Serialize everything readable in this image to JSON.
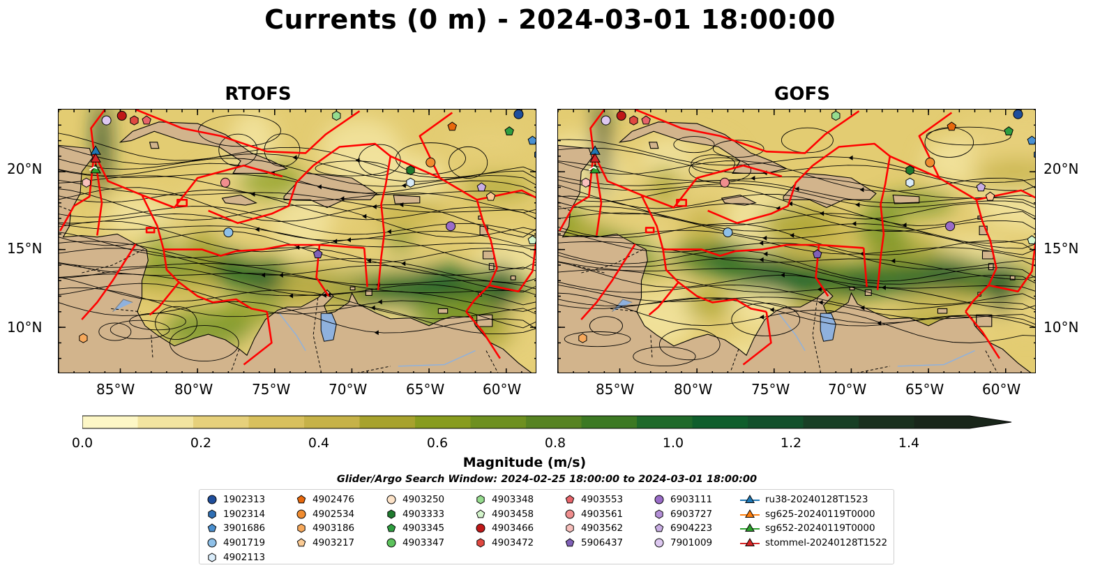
{
  "title": "Currents (0 m) - 2024-03-01 18:00:00",
  "panels": [
    {
      "id": "rtofs",
      "title": "RTOFS"
    },
    {
      "id": "gofs",
      "title": "GOFS"
    }
  ],
  "axes": {
    "x_ticks": [
      "85°W",
      "80°W",
      "75°W",
      "70°W",
      "65°W",
      "60°W"
    ],
    "y_ticks": [
      "20°N",
      "15°N",
      "10°N"
    ],
    "lon_range": [
      -89,
      -58
    ],
    "lat_range": [
      7,
      24
    ]
  },
  "colorbar": {
    "label": "Magnitude (m/s)",
    "ticks": [
      "0.0",
      "0.2",
      "0.4",
      "0.6",
      "0.8",
      "1.0",
      "1.2",
      "1.4"
    ],
    "min": 0.0,
    "max": 1.5,
    "extend": "max",
    "colors": [
      "#fdf7c6",
      "#f2e4a0",
      "#e6d07b",
      "#d8c05d",
      "#c6b248",
      "#a7a22d",
      "#889c1e",
      "#6e9020",
      "#578322",
      "#3c7923",
      "#1f6a2a",
      "#0f5e2c",
      "#12502b",
      "#183f25",
      "#1a301e",
      "#19261a"
    ]
  },
  "search_window": "Glider/Argo Search Window: 2024-02-25 18:00:00 to 2024-03-01 18:00:00",
  "legend": {
    "columns": [
      [
        {
          "label": "1902313",
          "marker": "circle",
          "color": "#1f4e9c"
        },
        {
          "label": "1902314",
          "marker": "hexagon",
          "color": "#2f6fb4"
        },
        {
          "label": "3901686",
          "marker": "pentagon",
          "color": "#4a90d0"
        },
        {
          "label": "4901719",
          "marker": "circle",
          "color": "#8ec0e8"
        },
        {
          "label": "4902113",
          "marker": "hexagon",
          "color": "#d9ecfa"
        }
      ],
      [
        {
          "label": "4902476",
          "marker": "pentagon",
          "color": "#e8680c"
        },
        {
          "label": "4902534",
          "marker": "circle",
          "color": "#f08c30"
        },
        {
          "label": "4903186",
          "marker": "hexagon",
          "color": "#f7a95c"
        },
        {
          "label": "4903217",
          "marker": "pentagon",
          "color": "#fbcb94"
        }
      ],
      [
        {
          "label": "4903250",
          "marker": "circle",
          "color": "#fde3c8"
        },
        {
          "label": "4903333",
          "marker": "hexagon",
          "color": "#1f7a2e"
        },
        {
          "label": "4903345",
          "marker": "pentagon",
          "color": "#2e9e40"
        },
        {
          "label": "4903347",
          "marker": "circle",
          "color": "#5cc25c"
        }
      ],
      [
        {
          "label": "4903348",
          "marker": "hexagon",
          "color": "#96dc8e"
        },
        {
          "label": "4903458",
          "marker": "pentagon",
          "color": "#d4f5cc"
        },
        {
          "label": "4903466",
          "marker": "circle",
          "color": "#c01818"
        },
        {
          "label": "4903472",
          "marker": "hexagon",
          "color": "#e04840"
        }
      ],
      [
        {
          "label": "4903553",
          "marker": "pentagon",
          "color": "#e8646a"
        },
        {
          "label": "4903561",
          "marker": "circle",
          "color": "#f08e8e"
        },
        {
          "label": "4903562",
          "marker": "hexagon",
          "color": "#f8c0bc"
        },
        {
          "label": "5906437",
          "marker": "pentagon",
          "color": "#8060b8"
        }
      ],
      [
        {
          "label": "6903111",
          "marker": "circle",
          "color": "#9a6cc8"
        },
        {
          "label": "6903727",
          "marker": "hexagon",
          "color": "#b48fd8"
        },
        {
          "label": "6904223",
          "marker": "pentagon",
          "color": "#c9aee4"
        },
        {
          "label": "7901009",
          "marker": "circle",
          "color": "#ddc8f0"
        }
      ],
      [
        {
          "label": "ru38-20240128T1523",
          "marker": "triangle-line",
          "color": "#1f77b4"
        },
        {
          "label": "sg625-20240119T0000",
          "marker": "triangle-line",
          "color": "#ff7f0e"
        },
        {
          "label": "sg652-20240119T0000",
          "marker": "triangle-line",
          "color": "#2ca02c"
        },
        {
          "label": "stommel-20240128T1522",
          "marker": "triangle-line",
          "color": "#d62728"
        }
      ]
    ]
  },
  "land_color": "#d2b48c",
  "eez_color": "#ff0000",
  "lake_color": "#8fb1dd"
}
